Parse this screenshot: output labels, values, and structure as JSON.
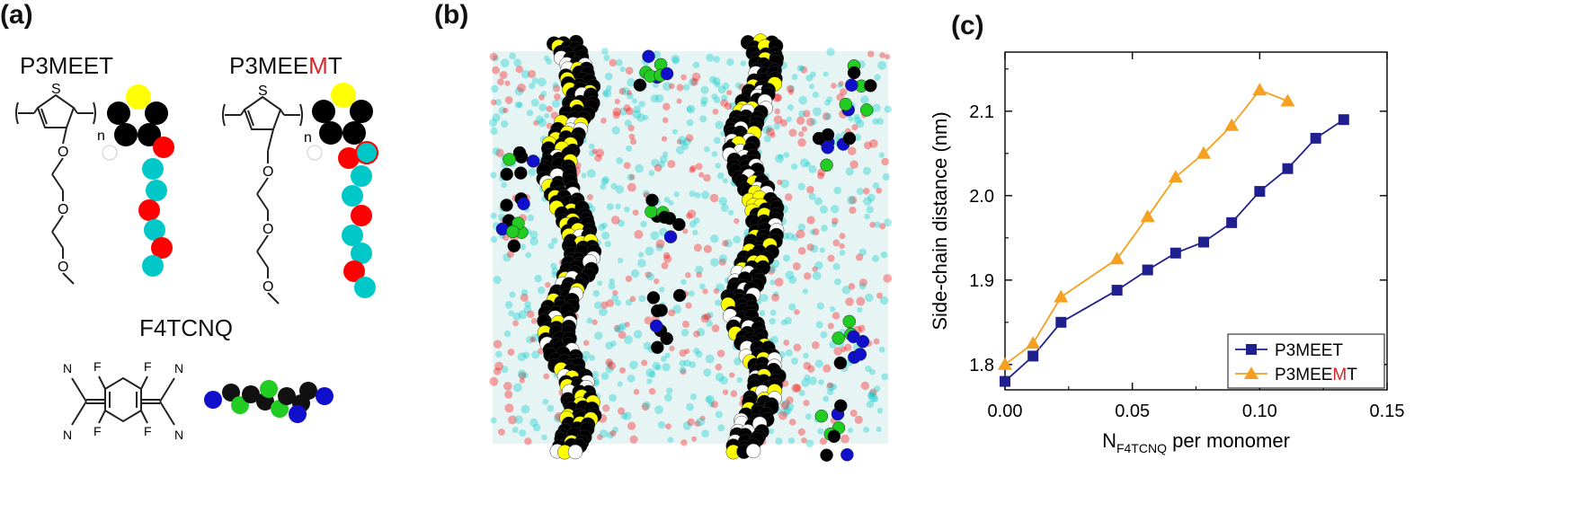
{
  "panel_a": {
    "label": "(a)",
    "polymer1": {
      "name": "P3MEET"
    },
    "polymer2": {
      "name_prefix": "P3MEE",
      "name_highlight": "M",
      "name_suffix": "T"
    },
    "dopant": {
      "name": "F4TCNQ"
    },
    "structure_atoms": {
      "sulfur": "S",
      "oxygen": "O",
      "nitrogen": "N",
      "fluorine": "F",
      "repeat": "n"
    },
    "bead_colors": {
      "sulfur": "#ffff00",
      "carbon": "#000000",
      "hydrogen": "#ffffff",
      "oxygen": "#ff0000",
      "side_chain": "#00c8c8",
      "nitrogen": "#1010cc",
      "fluorine": "#22cc22"
    },
    "highlight_color": "#d8262b"
  },
  "panel_b": {
    "label": "(b)",
    "content": "molecular-dynamics-snapshot"
  },
  "panel_c": {
    "label": "(c)",
    "chart_data": {
      "type": "line",
      "xlabel_main": "N",
      "xlabel_sub": "F4TCNQ",
      "xlabel_rest": " per monomer",
      "ylabel": "Side-chain distance (nm)",
      "xlim": [
        0.0,
        0.15
      ],
      "ylim": [
        1.77,
        2.17
      ],
      "xticks": [
        0.0,
        0.05,
        0.1,
        0.15
      ],
      "xtick_labels": [
        "0.00",
        "0.05",
        "0.10",
        "0.15"
      ],
      "yticks": [
        1.8,
        1.9,
        2.0,
        2.1
      ],
      "ytick_labels": [
        "1.8",
        "1.9",
        "2.0",
        "2.1"
      ],
      "legend_position": "bottom-right",
      "series": [
        {
          "name": "P3MEET",
          "color": "#1f1f8f",
          "marker": "square",
          "x": [
            0.0,
            0.011,
            0.022,
            0.044,
            0.056,
            0.067,
            0.078,
            0.089,
            0.1,
            0.111,
            0.122,
            0.133
          ],
          "y": [
            1.78,
            1.81,
            1.85,
            1.888,
            1.912,
            1.932,
            1.945,
            1.968,
            2.005,
            2.032,
            2.068,
            2.09
          ]
        },
        {
          "name_prefix": "P3MEE",
          "name_highlight": "M",
          "name_suffix": "T",
          "color": "#f5a020",
          "marker": "triangle",
          "x": [
            0.0,
            0.011,
            0.022,
            0.044,
            0.056,
            0.067,
            0.078,
            0.089,
            0.1,
            0.111
          ],
          "y": [
            1.8,
            1.825,
            1.88,
            1.925,
            1.975,
            2.022,
            2.05,
            2.083,
            2.125,
            2.112
          ]
        }
      ]
    }
  }
}
